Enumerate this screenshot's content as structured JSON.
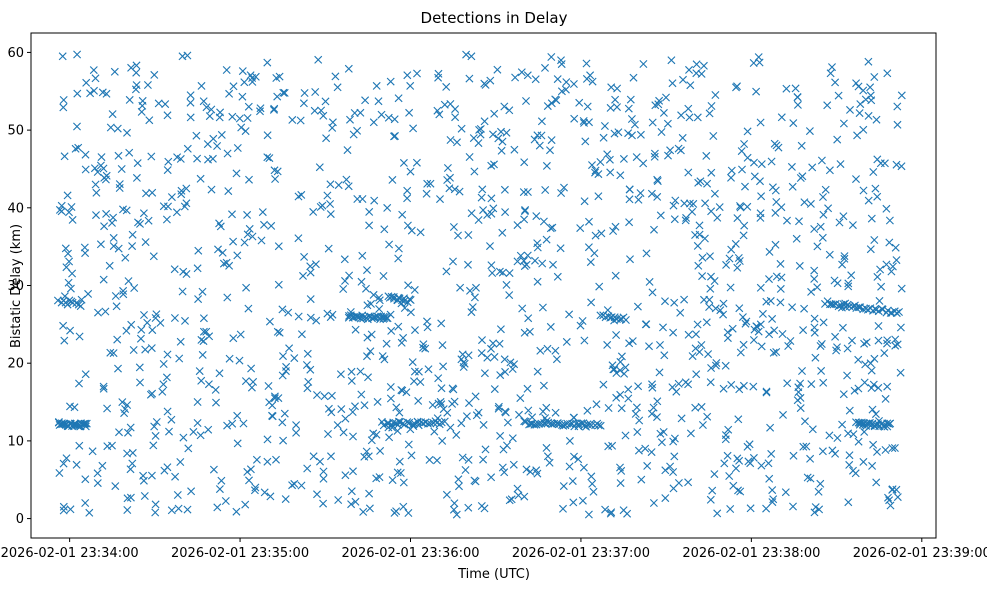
{
  "chart_data": {
    "type": "scatter",
    "title": "Detections in Delay",
    "xlabel": "Time (UTC)",
    "ylabel": "Bistatic Delay (km)",
    "marker": "x",
    "color": "#1f77b4",
    "xlim_seconds": [
      -13.6,
      305
    ],
    "ylim": [
      -2.5,
      62.5
    ],
    "x_ticks": [
      {
        "seconds": 0,
        "label": "2026-02-01 23:34:00"
      },
      {
        "seconds": 60,
        "label": "2026-02-01 23:35:00"
      },
      {
        "seconds": 120,
        "label": "2026-02-01 23:36:00"
      },
      {
        "seconds": 180,
        "label": "2026-02-01 23:37:00"
      },
      {
        "seconds": 240,
        "label": "2026-02-01 23:38:00"
      },
      {
        "seconds": 300,
        "label": "2026-02-01 23:39:00"
      }
    ],
    "y_ticks": [
      {
        "value": 0,
        "label": "0"
      },
      {
        "value": 10,
        "label": "10"
      },
      {
        "value": 20,
        "label": "20"
      },
      {
        "value": 30,
        "label": "30"
      },
      {
        "value": 40,
        "label": "40"
      },
      {
        "value": 50,
        "label": "50"
      },
      {
        "value": 60,
        "label": "60"
      }
    ],
    "x_range_seconds": [
      -4,
      293
    ],
    "y_range": [
      0.5,
      59.8
    ],
    "random_points_count": 1450,
    "tracks": [
      {
        "name": "track-12km-start",
        "t0": -4,
        "t1": 6,
        "y0": 12.2,
        "y1": 12.0,
        "count": 30
      },
      {
        "name": "track-12km-mid",
        "t0": 110,
        "t1": 132,
        "y0": 12.2,
        "y1": 12.3,
        "count": 28
      },
      {
        "name": "track-12km-center",
        "t0": 160,
        "t1": 187,
        "y0": 12.3,
        "y1": 12.0,
        "count": 36
      },
      {
        "name": "track-12km-end",
        "t0": 277,
        "t1": 289,
        "y0": 12.2,
        "y1": 12.0,
        "count": 26
      },
      {
        "name": "track-26km-left",
        "t0": 98,
        "t1": 112,
        "y0": 26.0,
        "y1": 25.8,
        "count": 26
      },
      {
        "name": "track-28km-left",
        "t0": 112,
        "t1": 120,
        "y0": 28.5,
        "y1": 28.0,
        "count": 14
      },
      {
        "name": "track-27km-right",
        "t0": 266,
        "t1": 292,
        "y0": 27.8,
        "y1": 26.5,
        "count": 34
      },
      {
        "name": "track-26km-center",
        "t0": 187,
        "t1": 196,
        "y0": 26.0,
        "y1": 25.8,
        "count": 12
      },
      {
        "name": "track-28km-start",
        "t0": -4,
        "t1": 4,
        "y0": 28.0,
        "y1": 27.5,
        "count": 10
      }
    ],
    "random_seed": 20260201
  }
}
